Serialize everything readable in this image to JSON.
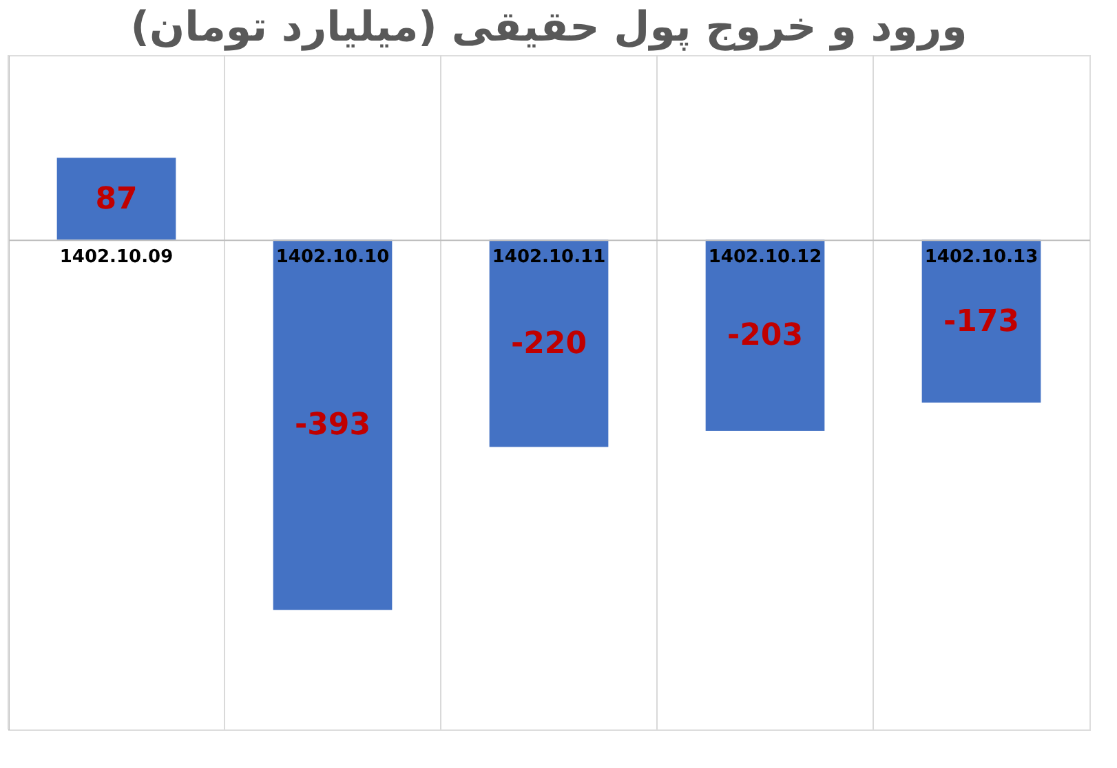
{
  "chart_data": {
    "type": "bar",
    "title": "ورود و خروج پول حقیقی (میلیارد تومان)",
    "categories": [
      "1402.10.09",
      "1402.10.10",
      "1402.10.11",
      "1402.10.12",
      "1402.10.13"
    ],
    "values": [
      87,
      -393,
      -220,
      -203,
      -173
    ],
    "color": "#4472c4",
    "ylim": [
      -520,
      196
    ],
    "data_labels": true,
    "grid": "x",
    "tick_labels": "x"
  }
}
